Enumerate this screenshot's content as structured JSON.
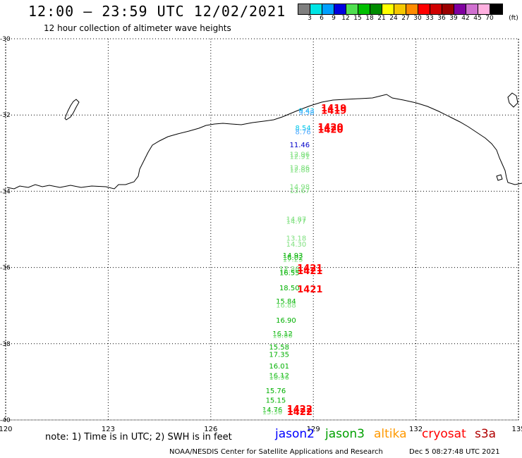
{
  "header": {
    "title": "12:00 – 23:59 UTC 12/02/2021",
    "subtitle": "12 hour collection of altimeter wave heights"
  },
  "legend": {
    "unit_label": "(ft)",
    "colors": [
      "#7f7f7f",
      "#00e5e5",
      "#00a0ff",
      "#0000e0",
      "#50e050",
      "#00c000",
      "#008c00",
      "#ffff00",
      "#f5c800",
      "#ff8c00",
      "#ff0000",
      "#d00000",
      "#9b0000",
      "#8000a0",
      "#d070d0",
      "#ffb0e0",
      "#000000"
    ],
    "ticks": [
      "3",
      "6",
      "9",
      "12",
      "15",
      "18",
      "21",
      "24",
      "27",
      "30",
      "33",
      "36",
      "39",
      "42",
      "45",
      "70"
    ]
  },
  "map": {
    "lon_range": [
      120,
      135
    ],
    "lat_range": [
      -40,
      -30
    ],
    "lon_ticks": [
      "120",
      "123",
      "126",
      "129",
      "132",
      "135"
    ],
    "lat_ticks": [
      "-30",
      "-32",
      "-34",
      "-36",
      "-38",
      "-40"
    ],
    "observations": [
      {
        "lon": 128.8,
        "lat": -31.95,
        "value": "9.43",
        "color": "#00c8e8"
      },
      {
        "lon": 128.8,
        "lat": -32.0,
        "value": "9.58",
        "color": "#4aa8ff"
      },
      {
        "lon": 128.7,
        "lat": -32.4,
        "value": "8.54",
        "color": "#00c8e8"
      },
      {
        "lon": 128.7,
        "lat": -32.5,
        "value": "8.76",
        "color": "#4aa8ff"
      },
      {
        "lon": 128.6,
        "lat": -32.85,
        "value": "11.46",
        "color": "#0000c8"
      },
      {
        "lon": 128.6,
        "lat": -33.1,
        "value": "12.96",
        "color": "#7ee07e"
      },
      {
        "lon": 128.6,
        "lat": -33.15,
        "value": "12.91",
        "color": "#7ee07e"
      },
      {
        "lon": 128.6,
        "lat": -33.45,
        "value": "12.86",
        "color": "#7ee07e"
      },
      {
        "lon": 128.6,
        "lat": -33.5,
        "value": "12.88",
        "color": "#7ee07e"
      },
      {
        "lon": 128.6,
        "lat": -33.95,
        "value": "14.98",
        "color": "#7ee07e"
      },
      {
        "lon": 128.6,
        "lat": -34.05,
        "value": "13.67",
        "color": "#7ee07e"
      },
      {
        "lon": 128.5,
        "lat": -34.8,
        "value": "14.87",
        "color": "#7ee07e"
      },
      {
        "lon": 128.5,
        "lat": -34.85,
        "value": "14.77",
        "color": "#7ee07e"
      },
      {
        "lon": 128.5,
        "lat": -35.3,
        "value": "13.18",
        "color": "#7ee07e"
      },
      {
        "lon": 128.5,
        "lat": -35.45,
        "value": "14.30",
        "color": "#7ee07e"
      },
      {
        "lon": 128.4,
        "lat": -35.75,
        "value": "14.93",
        "color": "#00b000"
      },
      {
        "lon": 128.4,
        "lat": -35.8,
        "value": "16.02",
        "color": "#00b000"
      },
      {
        "lon": 128.4,
        "lat": -35.85,
        "value": "17.23",
        "color": "#7ee07e"
      },
      {
        "lon": 128.3,
        "lat": -36.1,
        "value": "17.36",
        "color": "#7ee07e"
      },
      {
        "lon": 128.3,
        "lat": -36.15,
        "value": "16.69",
        "color": "#7ee07e"
      },
      {
        "lon": 128.3,
        "lat": -36.2,
        "value": "16.55",
        "color": "#00b000"
      },
      {
        "lon": 128.3,
        "lat": -36.6,
        "value": "18.50",
        "color": "#00b000"
      },
      {
        "lon": 128.2,
        "lat": -36.95,
        "value": "15.84",
        "color": "#00b000"
      },
      {
        "lon": 128.2,
        "lat": -37.05,
        "value": "16.88",
        "color": "#7ee07e"
      },
      {
        "lon": 128.2,
        "lat": -37.45,
        "value": "16.90",
        "color": "#00b000"
      },
      {
        "lon": 128.1,
        "lat": -37.8,
        "value": "16.12",
        "color": "#00b000"
      },
      {
        "lon": 128.1,
        "lat": -37.85,
        "value": "16.00",
        "color": "#7ee07e"
      },
      {
        "lon": 128.0,
        "lat": -38.15,
        "value": "15.58",
        "color": "#00b000"
      },
      {
        "lon": 128.0,
        "lat": -38.35,
        "value": "17.35",
        "color": "#00b000"
      },
      {
        "lon": 128.0,
        "lat": -38.65,
        "value": "16.01",
        "color": "#00b000"
      },
      {
        "lon": 128.0,
        "lat": -38.9,
        "value": "16.12",
        "color": "#00b000"
      },
      {
        "lon": 128.0,
        "lat": -38.95,
        "value": "16.96",
        "color": "#7ee07e"
      },
      {
        "lon": 127.9,
        "lat": -39.3,
        "value": "15.76",
        "color": "#00b000"
      },
      {
        "lon": 127.9,
        "lat": -39.55,
        "value": "15.15",
        "color": "#00b000"
      },
      {
        "lon": 127.8,
        "lat": -39.8,
        "value": "14.76",
        "color": "#00b000"
      },
      {
        "lon": 127.8,
        "lat": -39.85,
        "value": "15.30",
        "color": "#7ee07e"
      }
    ],
    "time_labels": [
      {
        "lon": 129.6,
        "lat": -31.9,
        "value": "1419"
      },
      {
        "lon": 129.6,
        "lat": -31.97,
        "value": "1419"
      },
      {
        "lon": 129.5,
        "lat": -32.4,
        "value": "1420"
      },
      {
        "lon": 129.5,
        "lat": -32.47,
        "value": "1420"
      },
      {
        "lon": 128.9,
        "lat": -36.1,
        "value": "1421"
      },
      {
        "lon": 128.9,
        "lat": -36.17,
        "value": "1421"
      },
      {
        "lon": 128.9,
        "lat": -36.65,
        "value": "1421"
      },
      {
        "lon": 128.6,
        "lat": -39.8,
        "value": "1422"
      },
      {
        "lon": 128.6,
        "lat": -39.87,
        "value": "1422"
      }
    ]
  },
  "footer": {
    "note": "note:  1) Time is in UTC;  2) SWH is in feet",
    "satellites": [
      {
        "name": "jason2",
        "color": "#0000ff"
      },
      {
        "name": "jason3",
        "color": "#00a000"
      },
      {
        "name": "altika",
        "color": "#ff9900"
      },
      {
        "name": "cryosat",
        "color": "#ff0000"
      },
      {
        "name": "s3a",
        "color": "#b00000"
      }
    ],
    "credit": "NOAA/NESDIS Center for Satellite Applications and Research",
    "timestamp": "Dec  5 08:27:48 UTC 2021"
  }
}
